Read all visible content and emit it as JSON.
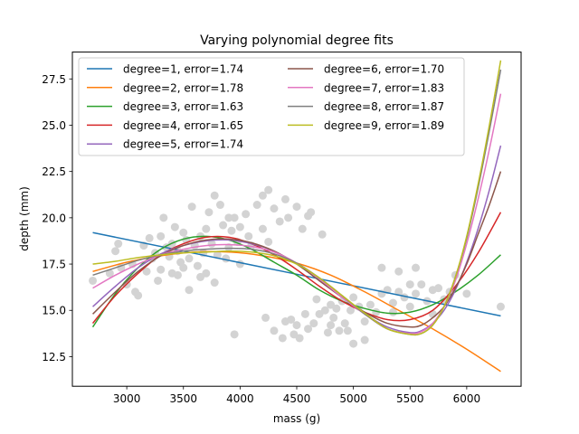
{
  "chart_data": {
    "type": "scatter",
    "title": "Varying polynomial degree fits",
    "xlabel": "mass (g)",
    "ylabel": "depth (mm)",
    "xlim": [
      2520,
      6480
    ],
    "ylim": [
      10.9,
      28.95
    ],
    "xticks": [
      3000,
      3500,
      4000,
      4500,
      5000,
      5500,
      6000
    ],
    "yticks": [
      12.5,
      15.0,
      17.5,
      20.0,
      22.5,
      25.0,
      27.5
    ],
    "ytick_labels": [
      "12.5",
      "15.0",
      "17.5",
      "20.0",
      "22.5",
      "25.0",
      "27.5"
    ],
    "grid": false,
    "legend_position": "upper left",
    "legend_columns": 2,
    "scatter_color": "#d3d3d3",
    "scatter_points": [
      [
        2700,
        16.6
      ],
      [
        2850,
        17.0
      ],
      [
        2900,
        18.2
      ],
      [
        2925,
        18.6
      ],
      [
        2950,
        17.3
      ],
      [
        3000,
        16.4
      ],
      [
        3050,
        17.5
      ],
      [
        3075,
        16.0
      ],
      [
        3100,
        15.8
      ],
      [
        3150,
        18.5
      ],
      [
        3175,
        17.1
      ],
      [
        3200,
        18.9
      ],
      [
        3225,
        17.8
      ],
      [
        3250,
        18.1
      ],
      [
        3275,
        16.6
      ],
      [
        3300,
        19.0
      ],
      [
        3300,
        17.2
      ],
      [
        3325,
        20.0
      ],
      [
        3350,
        18.4
      ],
      [
        3375,
        17.9
      ],
      [
        3400,
        17.0
      ],
      [
        3400,
        18.6
      ],
      [
        3425,
        19.5
      ],
      [
        3450,
        16.9
      ],
      [
        3450,
        18.2
      ],
      [
        3475,
        17.6
      ],
      [
        3500,
        19.2
      ],
      [
        3500,
        17.3
      ],
      [
        3525,
        18.8
      ],
      [
        3550,
        16.1
      ],
      [
        3550,
        17.8
      ],
      [
        3575,
        20.6
      ],
      [
        3600,
        18.5
      ],
      [
        3625,
        17.4
      ],
      [
        3650,
        19.0
      ],
      [
        3650,
        16.8
      ],
      [
        3675,
        18.1
      ],
      [
        3700,
        19.4
      ],
      [
        3700,
        17.0
      ],
      [
        3725,
        20.3
      ],
      [
        3750,
        18.6
      ],
      [
        3775,
        21.2
      ],
      [
        3775,
        16.5
      ],
      [
        3800,
        18.0
      ],
      [
        3825,
        20.7
      ],
      [
        3850,
        19.6
      ],
      [
        3875,
        17.8
      ],
      [
        3900,
        20.0
      ],
      [
        3900,
        18.4
      ],
      [
        3925,
        19.3
      ],
      [
        3950,
        13.7
      ],
      [
        3950,
        20.0
      ],
      [
        3975,
        18.7
      ],
      [
        4000,
        19.5
      ],
      [
        4000,
        17.5
      ],
      [
        4050,
        20.2
      ],
      [
        4075,
        19.0
      ],
      [
        4100,
        18.5
      ],
      [
        4150,
        20.7
      ],
      [
        4200,
        21.2
      ],
      [
        4200,
        19.4
      ],
      [
        4225,
        14.6
      ],
      [
        4250,
        21.5
      ],
      [
        4250,
        18.7
      ],
      [
        4300,
        20.5
      ],
      [
        4300,
        13.9
      ],
      [
        4350,
        19.8
      ],
      [
        4375,
        13.5
      ],
      [
        4400,
        14.4
      ],
      [
        4400,
        21.0
      ],
      [
        4425,
        20.0
      ],
      [
        4450,
        14.5
      ],
      [
        4475,
        13.7
      ],
      [
        4500,
        20.6
      ],
      [
        4500,
        14.2
      ],
      [
        4525,
        13.5
      ],
      [
        4550,
        19.4
      ],
      [
        4575,
        14.8
      ],
      [
        4600,
        20.1
      ],
      [
        4600,
        14.0
      ],
      [
        4625,
        20.3
      ],
      [
        4650,
        14.3
      ],
      [
        4675,
        15.6
      ],
      [
        4700,
        14.8
      ],
      [
        4725,
        19.1
      ],
      [
        4750,
        15.0
      ],
      [
        4775,
        13.8
      ],
      [
        4800,
        15.3
      ],
      [
        4800,
        14.2
      ],
      [
        4825,
        14.6
      ],
      [
        4850,
        15.1
      ],
      [
        4875,
        13.9
      ],
      [
        4900,
        15.5
      ],
      [
        4925,
        14.3
      ],
      [
        4950,
        13.9
      ],
      [
        4975,
        15.0
      ],
      [
        5000,
        15.7
      ],
      [
        5000,
        13.2
      ],
      [
        5050,
        15.2
      ],
      [
        5100,
        13.4
      ],
      [
        5100,
        14.4
      ],
      [
        5150,
        15.3
      ],
      [
        5200,
        14.9
      ],
      [
        5250,
        17.3
      ],
      [
        5250,
        15.9
      ],
      [
        5300,
        16.1
      ],
      [
        5350,
        15.4
      ],
      [
        5350,
        14.9
      ],
      [
        5400,
        16.0
      ],
      [
        5400,
        17.1
      ],
      [
        5450,
        15.7
      ],
      [
        5500,
        16.4
      ],
      [
        5500,
        15.2
      ],
      [
        5550,
        17.3
      ],
      [
        5550,
        15.9
      ],
      [
        5600,
        16.4
      ],
      [
        5650,
        15.5
      ],
      [
        5700,
        16.1
      ],
      [
        5700,
        14.8
      ],
      [
        5750,
        16.2
      ],
      [
        5800,
        15.6
      ],
      [
        5850,
        16.0
      ],
      [
        5900,
        16.9
      ],
      [
        6000,
        15.9
      ],
      [
        6300,
        15.2
      ]
    ],
    "series": [
      {
        "name": "degree=1, error=1.74",
        "degree": 1,
        "error": 1.74,
        "color": "#1f77b4",
        "x": [
          2700,
          6300
        ],
        "y": [
          19.2,
          14.7
        ]
      },
      {
        "name": "degree=2, error=1.78",
        "degree": 2,
        "error": 1.78,
        "color": "#ff7f0e",
        "x": [
          2700,
          3000,
          3300,
          3600,
          3900,
          4200,
          4500,
          4800,
          5100,
          5400,
          5700,
          6000,
          6300
        ],
        "y": [
          17.1,
          17.6,
          17.95,
          18.15,
          18.15,
          17.95,
          17.55,
          16.9,
          16.0,
          15.0,
          14.0,
          12.9,
          11.7
        ]
      },
      {
        "name": "degree=3, error=1.63",
        "degree": 3,
        "error": 1.63,
        "color": "#2ca02c",
        "x": [
          2700,
          2900,
          3100,
          3300,
          3500,
          3700,
          3900,
          4100,
          4300,
          4500,
          4700,
          4900,
          5100,
          5300,
          5500,
          5700,
          5900,
          6100,
          6300
        ],
        "y": [
          14.1,
          15.9,
          17.3,
          18.3,
          18.85,
          19.0,
          18.8,
          18.3,
          17.6,
          16.9,
          16.1,
          15.5,
          15.1,
          14.85,
          14.9,
          15.3,
          16.0,
          16.9,
          18.0
        ]
      },
      {
        "name": "degree=4, error=1.65",
        "degree": 4,
        "error": 1.65,
        "color": "#d62728",
        "x": [
          2700,
          2900,
          3100,
          3300,
          3500,
          3700,
          3900,
          4100,
          4300,
          4500,
          4700,
          4900,
          5100,
          5300,
          5500,
          5700,
          5900,
          6100,
          6300
        ],
        "y": [
          14.3,
          15.8,
          17.0,
          18.0,
          18.6,
          18.95,
          18.95,
          18.6,
          18.0,
          17.2,
          16.3,
          15.5,
          14.9,
          14.5,
          14.5,
          15.0,
          16.3,
          18.1,
          20.3
        ]
      },
      {
        "name": "degree=5, error=1.74",
        "degree": 5,
        "error": 1.74,
        "color": "#9467bd",
        "x": [
          2700,
          2900,
          3100,
          3300,
          3500,
          3700,
          3900,
          4100,
          4300,
          4500,
          4700,
          4900,
          5100,
          5300,
          5500,
          5600,
          5700,
          5800,
          5900,
          6000,
          6100,
          6200,
          6300
        ],
        "y": [
          15.2,
          16.3,
          17.3,
          18.05,
          18.5,
          18.75,
          18.8,
          18.6,
          18.2,
          17.5,
          16.6,
          15.7,
          14.8,
          14.1,
          13.8,
          13.9,
          14.3,
          15.0,
          16.1,
          17.6,
          19.4,
          21.5,
          23.9
        ]
      },
      {
        "name": "degree=6, error=1.70",
        "degree": 6,
        "error": 1.7,
        "color": "#8c564b",
        "x": [
          2700,
          2900,
          3100,
          3300,
          3500,
          3700,
          3900,
          4100,
          4300,
          4500,
          4700,
          4900,
          5100,
          5300,
          5500,
          5600,
          5700,
          5800,
          5900,
          6000,
          6100,
          6200,
          6300
        ],
        "y": [
          14.8,
          16.0,
          17.1,
          17.95,
          18.5,
          18.8,
          18.85,
          18.65,
          18.2,
          17.5,
          16.6,
          15.7,
          14.9,
          14.3,
          14.1,
          14.2,
          14.6,
          15.2,
          16.2,
          17.5,
          19.1,
          20.7,
          22.5
        ]
      },
      {
        "name": "degree=7, error=1.83",
        "degree": 7,
        "error": 1.83,
        "color": "#e377c2",
        "x": [
          2700,
          2900,
          3100,
          3300,
          3500,
          3700,
          3900,
          4100,
          4300,
          4500,
          4700,
          4900,
          5100,
          5300,
          5500,
          5600,
          5700,
          5800,
          5900,
          6000,
          6100,
          6200,
          6300
        ],
        "y": [
          16.2,
          16.9,
          17.5,
          18.0,
          18.3,
          18.5,
          18.55,
          18.45,
          18.15,
          17.55,
          16.7,
          15.7,
          14.8,
          14.0,
          13.75,
          13.85,
          14.3,
          15.2,
          16.6,
          18.6,
          21.0,
          23.7,
          26.7
        ]
      },
      {
        "name": "degree=8, error=1.87",
        "degree": 8,
        "error": 1.87,
        "color": "#7f7f7f",
        "x": [
          2700,
          2900,
          3100,
          3300,
          3500,
          3700,
          3900,
          4100,
          4300,
          4500,
          4700,
          4900,
          5100,
          5300,
          5500,
          5600,
          5700,
          5800,
          5900,
          6000,
          6100,
          6200,
          6300
        ],
        "y": [
          16.9,
          17.3,
          17.7,
          18.0,
          18.2,
          18.3,
          18.35,
          18.3,
          18.05,
          17.55,
          16.75,
          15.8,
          14.8,
          14.0,
          13.7,
          13.75,
          14.2,
          15.2,
          16.8,
          18.9,
          21.6,
          24.7,
          28.0
        ]
      },
      {
        "name": "degree=9, error=1.89",
        "degree": 9,
        "error": 1.89,
        "color": "#bcbd22",
        "x": [
          2700,
          2900,
          3100,
          3300,
          3500,
          3700,
          3900,
          4100,
          4300,
          4500,
          4700,
          4900,
          5100,
          5300,
          5500,
          5600,
          5700,
          5800,
          5900,
          6000,
          6100,
          6200,
          6300
        ],
        "y": [
          17.5,
          17.65,
          17.85,
          18.0,
          18.1,
          18.15,
          18.2,
          18.15,
          17.95,
          17.5,
          16.75,
          15.8,
          14.85,
          14.0,
          13.7,
          13.75,
          14.2,
          15.2,
          16.8,
          19.0,
          21.8,
          25.0,
          28.5
        ]
      }
    ]
  }
}
